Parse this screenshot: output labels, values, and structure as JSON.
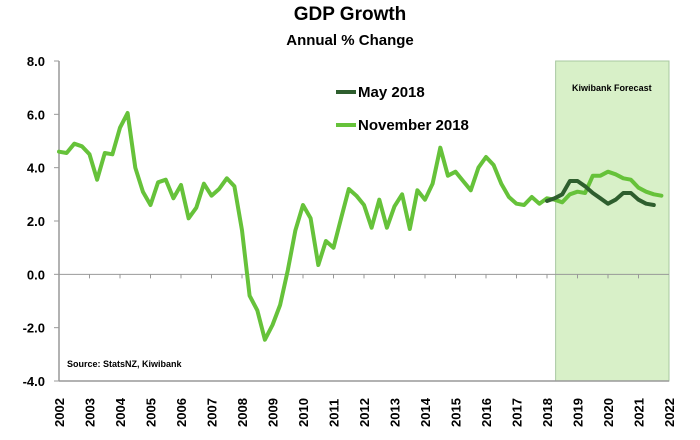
{
  "chart_data": {
    "type": "line",
    "title": "GDP Growth",
    "subtitle": "Annual % Change",
    "xlabel": "",
    "ylabel": "",
    "ylim": [
      -4.0,
      8.0
    ],
    "xlim": [
      2002,
      2022
    ],
    "yticks": [
      "8.0",
      "6.0",
      "4.0",
      "2.0",
      "0.0",
      "-2.0",
      "-4.0"
    ],
    "ytick_values": [
      8,
      6,
      4,
      2,
      0,
      -2,
      -4
    ],
    "xticks": [
      "2002",
      "2003",
      "2004",
      "2005",
      "2006",
      "2007",
      "2008",
      "2009",
      "2010",
      "2011",
      "2012",
      "2013",
      "2014",
      "2015",
      "2016",
      "2017",
      "2018",
      "2019",
      "2020",
      "2021",
      "2022"
    ],
    "grid": false,
    "legend_placement": "top-center",
    "annotations": {
      "forecast_label": "Kiwibank Forecast",
      "forecast_range": [
        2018.25,
        2022
      ],
      "source": "Source: StatsNZ, Kiwibank"
    },
    "series": [
      {
        "name": "May 2018",
        "color": "#2e5e2e",
        "points": [
          [
            2018.0,
            2.75
          ],
          [
            2018.25,
            2.85
          ],
          [
            2018.5,
            3.0
          ],
          [
            2018.75,
            3.5
          ],
          [
            2019.0,
            3.5
          ],
          [
            2019.25,
            3.3
          ],
          [
            2019.5,
            3.05
          ],
          [
            2019.75,
            2.85
          ],
          [
            2020.0,
            2.65
          ],
          [
            2020.25,
            2.8
          ],
          [
            2020.5,
            3.05
          ],
          [
            2020.75,
            3.05
          ],
          [
            2021.0,
            2.8
          ],
          [
            2021.25,
            2.65
          ],
          [
            2021.5,
            2.6
          ]
        ]
      },
      {
        "name": "November 2018",
        "color": "#66c23a",
        "points": [
          [
            2002.0,
            4.6
          ],
          [
            2002.25,
            4.55
          ],
          [
            2002.5,
            4.9
          ],
          [
            2002.75,
            4.8
          ],
          [
            2003.0,
            4.5
          ],
          [
            2003.25,
            3.55
          ],
          [
            2003.5,
            4.55
          ],
          [
            2003.75,
            4.5
          ],
          [
            2004.0,
            5.5
          ],
          [
            2004.25,
            6.05
          ],
          [
            2004.5,
            4.0
          ],
          [
            2004.75,
            3.1
          ],
          [
            2005.0,
            2.6
          ],
          [
            2005.25,
            3.45
          ],
          [
            2005.5,
            3.55
          ],
          [
            2005.75,
            2.85
          ],
          [
            2006.0,
            3.35
          ],
          [
            2006.25,
            2.1
          ],
          [
            2006.5,
            2.5
          ],
          [
            2006.75,
            3.4
          ],
          [
            2007.0,
            2.95
          ],
          [
            2007.25,
            3.2
          ],
          [
            2007.5,
            3.6
          ],
          [
            2007.75,
            3.3
          ],
          [
            2008.0,
            1.65
          ],
          [
            2008.25,
            -0.8
          ],
          [
            2008.5,
            -1.35
          ],
          [
            2008.75,
            -2.45
          ],
          [
            2009.0,
            -1.9
          ],
          [
            2009.25,
            -1.15
          ],
          [
            2009.5,
            0.15
          ],
          [
            2009.75,
            1.65
          ],
          [
            2010.0,
            2.6
          ],
          [
            2010.25,
            2.1
          ],
          [
            2010.5,
            0.35
          ],
          [
            2010.75,
            1.25
          ],
          [
            2011.0,
            1.0
          ],
          [
            2011.25,
            2.1
          ],
          [
            2011.5,
            3.2
          ],
          [
            2011.75,
            2.95
          ],
          [
            2012.0,
            2.6
          ],
          [
            2012.25,
            1.75
          ],
          [
            2012.5,
            2.8
          ],
          [
            2012.75,
            1.75
          ],
          [
            2013.0,
            2.55
          ],
          [
            2013.25,
            3.0
          ],
          [
            2013.5,
            1.7
          ],
          [
            2013.75,
            3.15
          ],
          [
            2014.0,
            2.8
          ],
          [
            2014.25,
            3.4
          ],
          [
            2014.5,
            4.75
          ],
          [
            2014.75,
            3.7
          ],
          [
            2015.0,
            3.85
          ],
          [
            2015.25,
            3.5
          ],
          [
            2015.5,
            3.15
          ],
          [
            2015.75,
            4.0
          ],
          [
            2016.0,
            4.4
          ],
          [
            2016.25,
            4.1
          ],
          [
            2016.5,
            3.4
          ],
          [
            2016.75,
            2.9
          ],
          [
            2017.0,
            2.65
          ],
          [
            2017.25,
            2.6
          ],
          [
            2017.5,
            2.9
          ],
          [
            2017.75,
            2.65
          ],
          [
            2018.0,
            2.85
          ],
          [
            2018.25,
            2.8
          ],
          [
            2018.5,
            2.7
          ],
          [
            2018.75,
            3.0
          ],
          [
            2019.0,
            3.1
          ],
          [
            2019.25,
            3.05
          ],
          [
            2019.5,
            3.7
          ],
          [
            2019.75,
            3.7
          ],
          [
            2020.0,
            3.85
          ],
          [
            2020.25,
            3.75
          ],
          [
            2020.5,
            3.6
          ],
          [
            2020.75,
            3.55
          ],
          [
            2021.0,
            3.25
          ],
          [
            2021.25,
            3.1
          ],
          [
            2021.5,
            3.0
          ],
          [
            2021.75,
            2.95
          ]
        ]
      }
    ]
  }
}
